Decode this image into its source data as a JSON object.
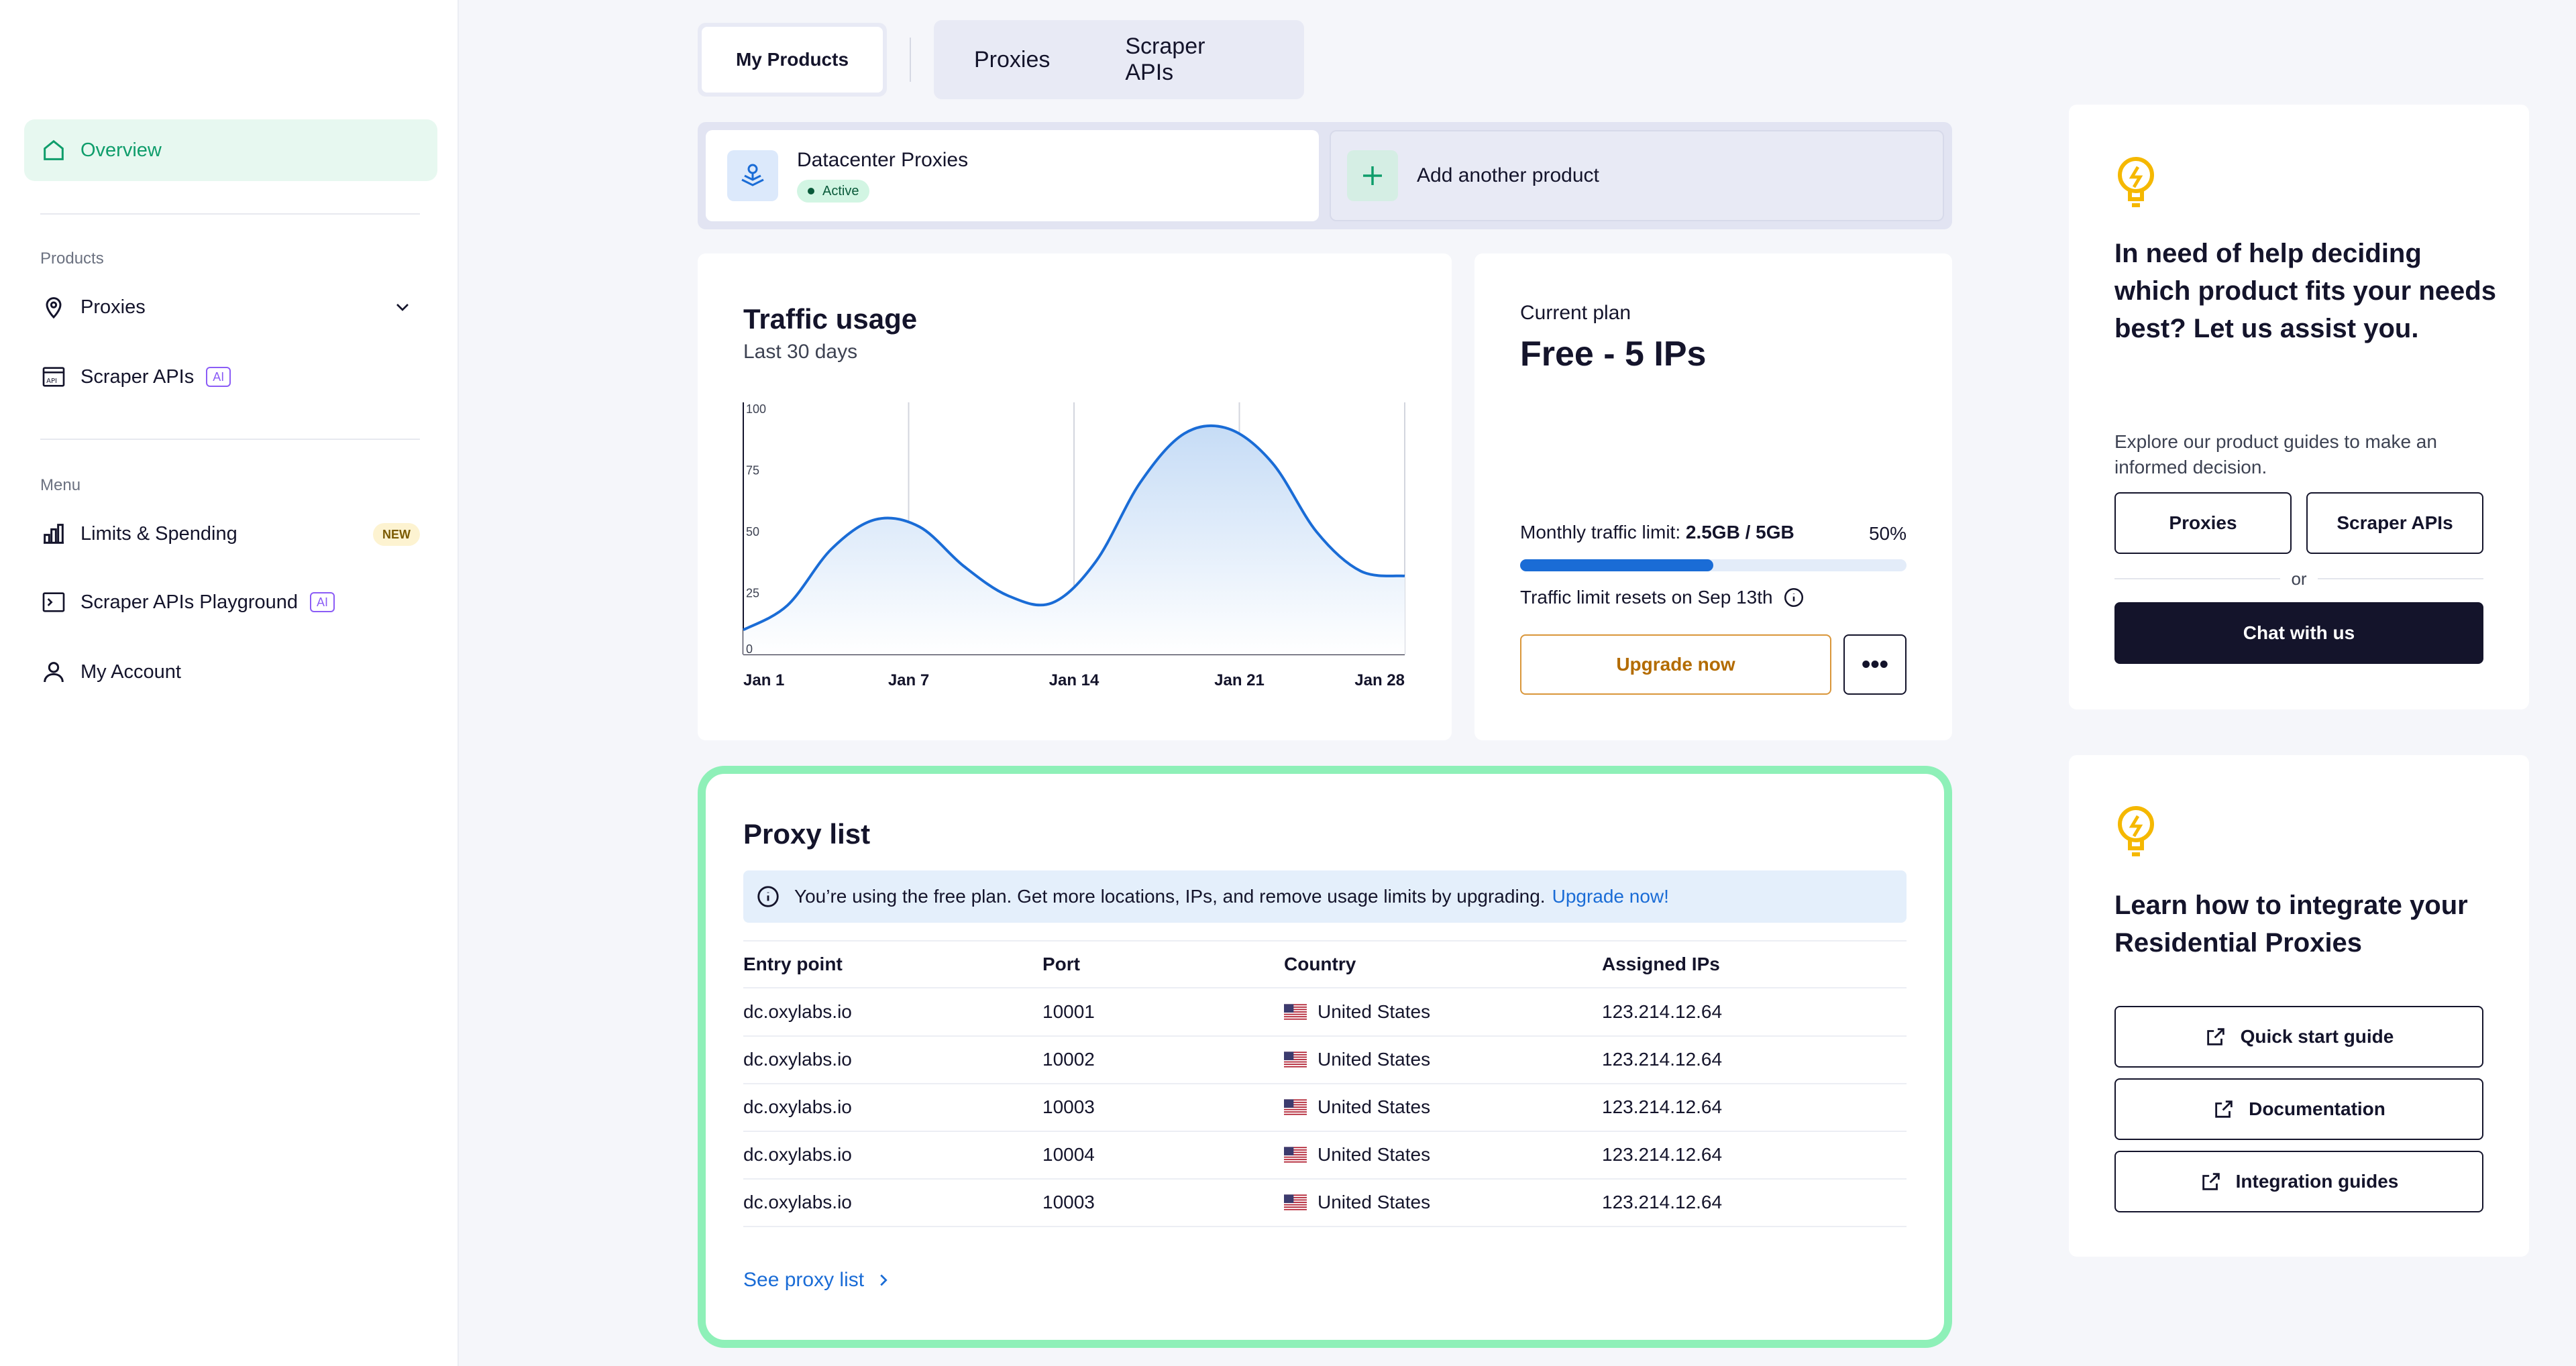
{
  "sidebar": {
    "overview": "Overview",
    "products_label": "Products",
    "proxies": "Proxies",
    "scraper_apis": "Scraper APIs",
    "ai_badge": "AI",
    "menu_label": "Menu",
    "limits": "Limits & Spending",
    "new_badge": "NEW",
    "playground": "Scraper APIs Playground",
    "account": "My Account"
  },
  "tabs": {
    "my_products": "My Products",
    "proxies": "Proxies",
    "scraper_apis": "Scraper APIs"
  },
  "products": {
    "active_name": "Datacenter Proxies",
    "active_status": "Active",
    "add_label": "Add another product"
  },
  "traffic": {
    "title": "Traffic usage",
    "subtitle": "Last 30 days"
  },
  "chart_data": {
    "type": "area",
    "x_ticks": [
      "Jan 1",
      "Jan 7",
      "Jan 14",
      "Jan 21",
      "Jan 28"
    ],
    "y_ticks": [
      "0",
      "25",
      "50",
      "75",
      "100"
    ],
    "ylim": [
      0,
      100
    ],
    "points": [
      {
        "x": 0,
        "y": 10
      },
      {
        "x": 2,
        "y": 20
      },
      {
        "x": 4,
        "y": 43
      },
      {
        "x": 6,
        "y": 55
      },
      {
        "x": 8,
        "y": 52
      },
      {
        "x": 10,
        "y": 36
      },
      {
        "x": 12,
        "y": 24
      },
      {
        "x": 14,
        "y": 21
      },
      {
        "x": 16,
        "y": 38
      },
      {
        "x": 18,
        "y": 70
      },
      {
        "x": 20,
        "y": 90
      },
      {
        "x": 22,
        "y": 92
      },
      {
        "x": 24,
        "y": 78
      },
      {
        "x": 26,
        "y": 50
      },
      {
        "x": 28,
        "y": 34
      },
      {
        "x": 30,
        "y": 32
      }
    ],
    "accent": "#1a6cd6"
  },
  "plan": {
    "label": "Current plan",
    "name": "Free - 5 IPs",
    "limit_label": "Monthly traffic limit:",
    "limit_value": "2.5GB / 5GB",
    "percent_text": "50%",
    "progress": 0.5,
    "reset_text": "Traffic limit resets on Sep 13th",
    "upgrade": "Upgrade now",
    "more": "•••"
  },
  "proxy_list": {
    "title": "Proxy list",
    "notice": "You’re using the free plan. Get more locations, IPs, and remove usage limits by upgrading.",
    "notice_link": "Upgrade now!",
    "headers": [
      "Entry point",
      "Port",
      "Country",
      "Assigned IPs"
    ],
    "rows": [
      [
        "dc.oxylabs.io",
        "10001",
        "United States",
        "123.214.12.64"
      ],
      [
        "dc.oxylabs.io",
        "10002",
        "United States",
        "123.214.12.64"
      ],
      [
        "dc.oxylabs.io",
        "10003",
        "United States",
        "123.214.12.64"
      ],
      [
        "dc.oxylabs.io",
        "10004",
        "United States",
        "123.214.12.64"
      ],
      [
        "dc.oxylabs.io",
        "10003",
        "United States",
        "123.214.12.64"
      ]
    ],
    "see_link": "See proxy list"
  },
  "help": {
    "title": "In need of help deciding which product fits your needs best? Let us assist you.",
    "text": "Explore our product guides to make an informed decision.",
    "btn_proxies": "Proxies",
    "btn_scraper": "Scraper APIs",
    "or": "or",
    "chat": "Chat with us"
  },
  "integrate": {
    "title": "Learn how to integrate your Residential Proxies",
    "quick": "Quick start guide",
    "docs": "Documentation",
    "guides": "Integration guides"
  },
  "colors": {
    "accent_green": "#0f9d6b",
    "accent_blue": "#1a6cd6",
    "upgrade_orange": "#d9963a",
    "highlight_border": "#8ef0b8",
    "bulb_yellow": "#f5b800"
  },
  "icons": [
    "home-icon",
    "pin-icon",
    "api-icon",
    "chart-bars-icon",
    "terminal-icon",
    "user-icon",
    "chevron-down-icon",
    "datacenter-icon",
    "plus-icon",
    "info-icon",
    "flag-us-icon",
    "chevron-right-icon",
    "lightbulb-icon",
    "external-link-icon"
  ]
}
